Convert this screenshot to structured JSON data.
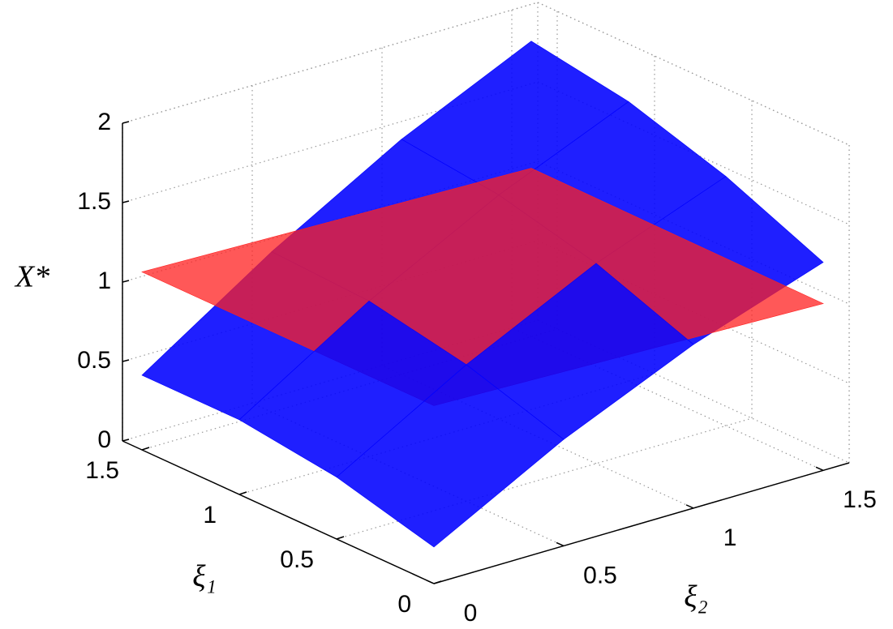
{
  "chart_data": {
    "type": "surface3d",
    "xlabel": "ξ₁",
    "ylabel": "ξ₂",
    "zlabel": "X*",
    "xlim": [
      0,
      1.6
    ],
    "ylim": [
      0,
      1.6
    ],
    "zlim": [
      0,
      2
    ],
    "xticks": [
      0,
      0.5,
      1,
      1.5
    ],
    "yticks": [
      0,
      0.5,
      1,
      1.5
    ],
    "zticks": [
      0,
      0.5,
      1,
      1.5,
      2
    ],
    "grid": true,
    "series": [
      {
        "color": "#0000ff",
        "x": [
          0,
          0.5,
          1,
          1.5
        ],
        "y": [
          0,
          0.5,
          1,
          1.5
        ],
        "z": [
          [
            0.23,
            0.67,
            1.03,
            1.31
          ],
          [
            0.39,
            0.86,
            1.26,
            1.57
          ],
          [
            0.47,
            0.98,
            1.41,
            1.76
          ],
          [
            0.47,
            1.01,
            1.48,
            1.86
          ]
        ]
      },
      {
        "color": "#ff2020",
        "x": [
          0,
          1.5
        ],
        "y": [
          0,
          1.5
        ],
        "z": [
          [
            1.12,
            1.05
          ],
          [
            1.12,
            1.06
          ]
        ]
      }
    ]
  }
}
